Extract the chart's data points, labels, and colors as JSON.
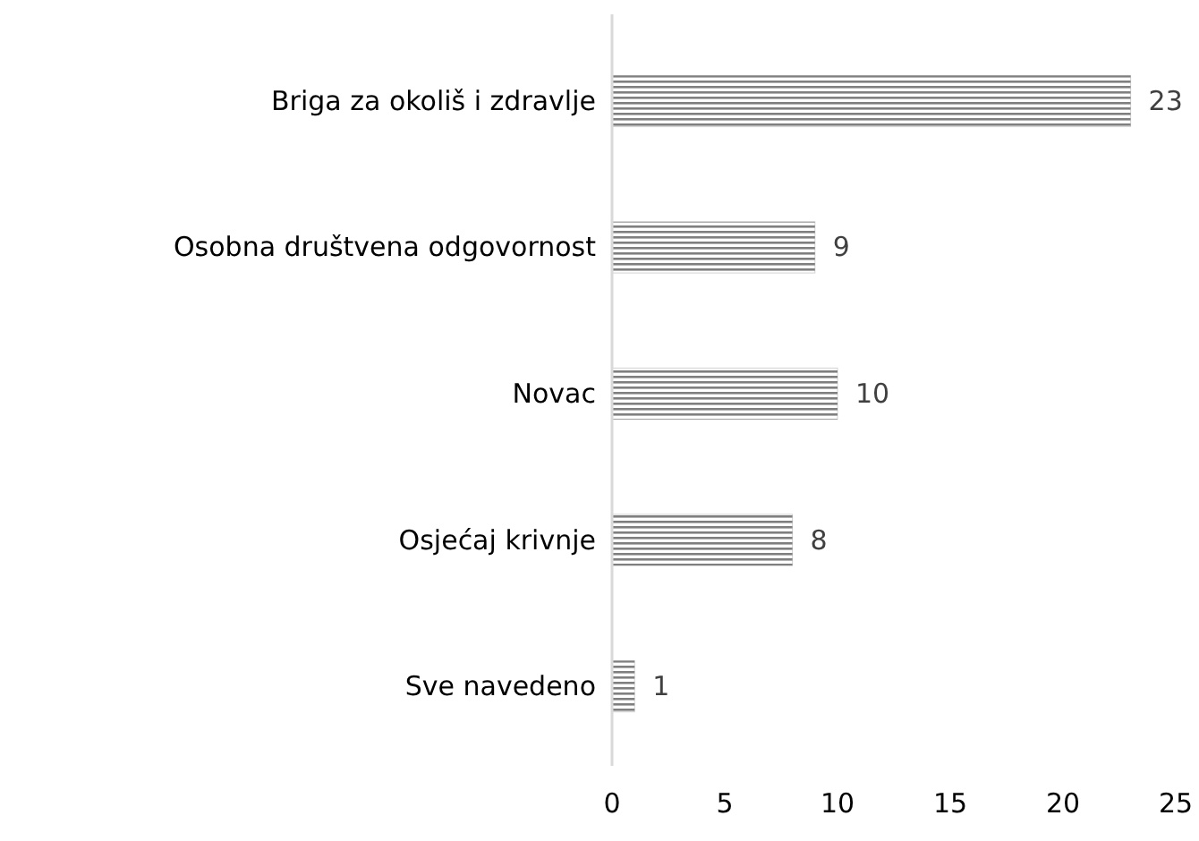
{
  "chart_data": {
    "type": "bar",
    "orientation": "horizontal",
    "categories": [
      "Briga za okoliš i zdravlje",
      "Osobna društvena odgovornost",
      "Novac",
      "Osjećaj krivnje",
      "Sve navedeno"
    ],
    "values": [
      23,
      9,
      10,
      8,
      1
    ],
    "color": "#7f7f7f",
    "xlim": [
      0,
      25
    ],
    "xticks": [
      0,
      5,
      10,
      15,
      20,
      25
    ],
    "data_labels": true
  }
}
